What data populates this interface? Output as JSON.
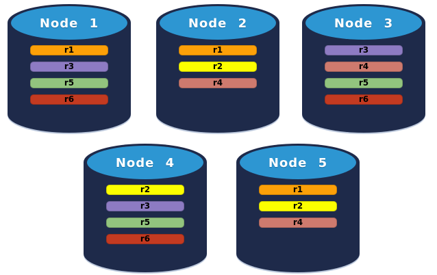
{
  "colors": {
    "background": "#FFFFFF",
    "cylinder_body": "#1E2A4A",
    "cylinder_top": "#2D96D2",
    "node_label_text": "#FFFFFF",
    "bar_text": "#000000",
    "replica_colors": {
      "r1": "#FCA008",
      "r2": "#FCFF00",
      "r3": "#8D7BC3",
      "r4": "#CE7A6E",
      "r5": "#92C47E",
      "r6": "#C33A21"
    }
  },
  "nodes": [
    {
      "label": "Node 1",
      "replicas": [
        "r1",
        "r3",
        "r5",
        "r6"
      ]
    },
    {
      "label": "Node 2",
      "replicas": [
        "r1",
        "r2",
        "r4"
      ]
    },
    {
      "label": "Node 3",
      "replicas": [
        "r3",
        "r4",
        "r5",
        "r6"
      ]
    },
    {
      "label": "Node 4",
      "replicas": [
        "r2",
        "r3",
        "r5",
        "r6"
      ]
    },
    {
      "label": "Node 5",
      "replicas": [
        "r1",
        "r2",
        "r4"
      ]
    }
  ]
}
